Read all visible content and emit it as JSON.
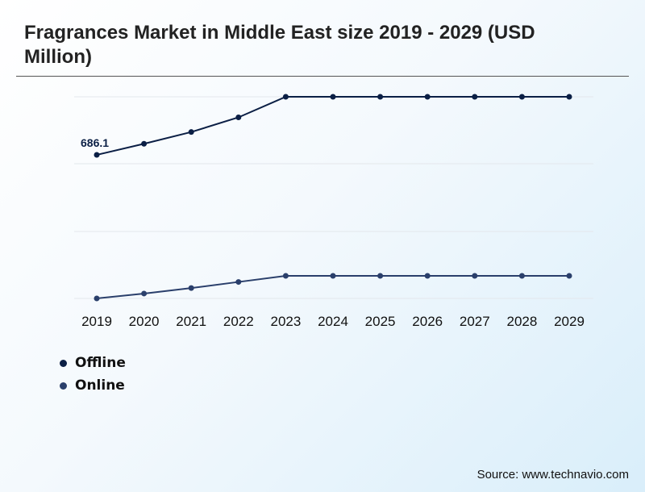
{
  "title": "Fragrances Market in Middle East size 2019 - 2029 (USD Million)",
  "source": "Source: www.technavio.com",
  "colors": {
    "offline": "#0b1f45",
    "online": "#2a3f6b",
    "grid": "#e3e7ec"
  },
  "chart_data": {
    "type": "line",
    "x": [
      "2019",
      "2020",
      "2021",
      "2022",
      "2023",
      "2024",
      "2025",
      "2026",
      "2027",
      "2028",
      "2029"
    ],
    "series": [
      {
        "name": "Offline",
        "values": [
          686.1,
          705.0,
          725.0,
          750.0,
          785.0,
          785.0,
          785.0,
          785.0,
          785.0,
          785.0,
          785.0
        ],
        "labels": [
          "686.1",
          "",
          "",
          "",
          "",
          "",
          "",
          "",
          "",
          "",
          ""
        ]
      },
      {
        "name": "Online",
        "values": [
          478.0,
          486.0,
          495.0,
          505.0,
          515.0,
          515.0,
          515.0,
          515.0,
          515.0,
          515.0,
          515.0
        ],
        "labels": [
          "",
          "",
          "",
          "",
          "",
          "",
          "",
          "",
          "",
          "",
          ""
        ]
      }
    ],
    "ylim": [
      475,
      785
    ],
    "grid": true,
    "legend_position": "bottom-left"
  }
}
